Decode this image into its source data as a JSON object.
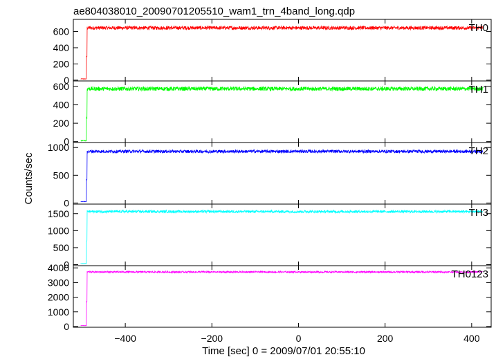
{
  "chart_data": {
    "type": "line",
    "title": "ae804038010_20090701205510_wam1_trn_4band_long.qdp",
    "xlabel": "Time [sec] 0 = 2009/07/01 20:55:10",
    "ylabel": "Counts/sec",
    "xlim": [
      -520,
      445
    ],
    "xticks": [
      -400,
      -200,
      0,
      200,
      400
    ],
    "trigger_time": -489,
    "panels": [
      {
        "name": "TH0",
        "color": "#ff0000",
        "ylim": [
          -10,
          750
        ],
        "yticks": [
          0,
          200,
          400,
          600
        ],
        "pre_level": 15,
        "level": 645,
        "noise": 22
      },
      {
        "name": "TH1",
        "color": "#00ff00",
        "ylim": [
          -10,
          660
        ],
        "yticks": [
          0,
          200,
          400,
          600
        ],
        "pre_level": 10,
        "level": 575,
        "noise": 22
      },
      {
        "name": "TH2",
        "color": "#0000ff",
        "ylim": [
          -20,
          1090
        ],
        "yticks": [
          0,
          500,
          1000
        ],
        "pre_level": 25,
        "level": 930,
        "noise": 28
      },
      {
        "name": "TH3",
        "color": "#00ffff",
        "ylim": [
          -30,
          1780
        ],
        "yticks": [
          0,
          500,
          1000,
          1500
        ],
        "pre_level": 30,
        "level": 1560,
        "noise": 38
      },
      {
        "name": "TH0123",
        "color": "#ff00ff",
        "ylim": [
          -50,
          4150
        ],
        "yticks": [
          0,
          1000,
          2000,
          3000,
          4000
        ],
        "pre_level": 60,
        "level": 3720,
        "noise": 55
      }
    ]
  }
}
